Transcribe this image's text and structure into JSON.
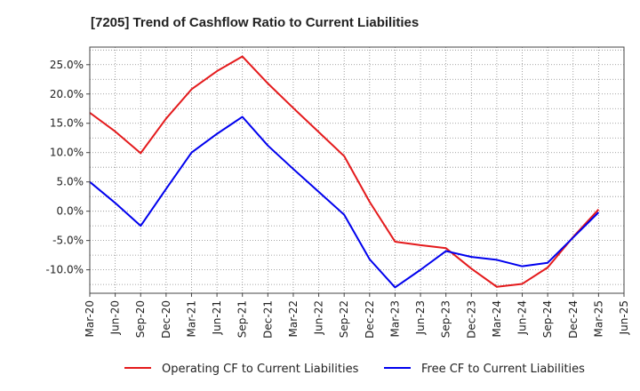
{
  "chart_data": {
    "type": "line",
    "title": "[7205]  Trend of Cashflow Ratio to Current Liabilities",
    "xlabel": "",
    "ylabel": "",
    "x": [
      "Mar-20",
      "Jun-20",
      "Sep-20",
      "Dec-20",
      "Mar-21",
      "Jun-21",
      "Sep-21",
      "Dec-21",
      "Mar-22",
      "Jun-22",
      "Sep-22",
      "Dec-22",
      "Mar-23",
      "Jun-23",
      "Sep-23",
      "Dec-23",
      "Mar-24",
      "Jun-24",
      "Sep-24",
      "Dec-24",
      "Mar-25",
      "Jun-25"
    ],
    "y_ticks": [
      "25.0%",
      "20.0%",
      "15.0%",
      "10.0%",
      "5.0%",
      "0.0%",
      "-5.0%",
      "-10.0%"
    ],
    "y_tick_values": [
      25,
      20,
      15,
      10,
      5,
      0,
      -5,
      -10
    ],
    "ylim": [
      -14,
      28
    ],
    "grid": true,
    "legend_position": "bottom",
    "series": [
      {
        "name": "Operating CF to Current Liabilities",
        "color": "#e41a1c",
        "values": [
          16.8,
          13.6,
          9.9,
          15.8,
          20.8,
          23.9,
          26.4,
          21.8,
          17.6,
          13.5,
          9.4,
          1.6,
          -5.2,
          -5.8,
          -6.3,
          -9.8,
          -12.9,
          -12.4,
          -9.6,
          -4.4,
          0.3,
          null
        ]
      },
      {
        "name": "Free CF to Current Liabilities",
        "color": "#0000ee",
        "values": [
          5.0,
          1.4,
          -2.5,
          3.8,
          10.0,
          13.2,
          16.1,
          11.2,
          7.2,
          3.3,
          -0.6,
          -8.2,
          -13.0,
          -10.0,
          -6.8,
          -7.8,
          -8.3,
          -9.4,
          -8.8,
          -4.5,
          -0.2,
          null
        ]
      }
    ]
  }
}
